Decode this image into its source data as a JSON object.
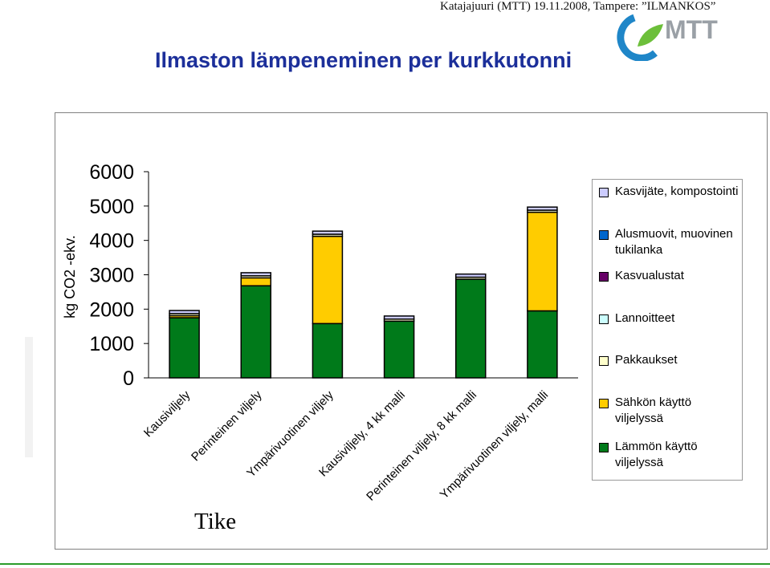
{
  "header": {
    "note": "Katajajuuri (MTT) 19.11.2008, Tampere: ”ILMANKOS”",
    "logo_text": "MTT",
    "title": "Ilmaston lämpeneminen per kurkkutonni"
  },
  "source_label": "Tike",
  "colors": {
    "title": "#1c2f9a",
    "logo_blue": "#1f86c8",
    "logo_green": "#6cbf3a",
    "bottom_rule": "#2a9d2a"
  },
  "chart_data": {
    "type": "bar",
    "stacked": true,
    "ylabel": "kg CO2 -ekv.",
    "ylim": [
      0,
      6000
    ],
    "yticks": [
      0,
      1000,
      2000,
      3000,
      4000,
      5000,
      6000
    ],
    "categories": [
      "Kausiviljely",
      "Perinteinen viljely",
      "Ympärivuotinen viljely",
      "Kausiviljely, 4 kk malli",
      "Perinteinen viljely, 8 kk malli",
      "Ympärivuotinen viljely, malli"
    ],
    "legend_position": "right",
    "series": [
      {
        "name": "Lämmön käyttö viljelyssä",
        "color": "#007a1a",
        "values": [
          1750,
          2680,
          1580,
          1650,
          2870,
          1950
        ]
      },
      {
        "name": "Sähkön käyttö viljelyssä",
        "color": "#ffcc00",
        "values": [
          60,
          230,
          2540,
          0,
          0,
          2870
        ]
      },
      {
        "name": "Pakkaukset",
        "color": "#ffffcc",
        "values": [
          60,
          60,
          60,
          60,
          60,
          60
        ]
      },
      {
        "name": "Lannoitteet",
        "color": "#ccffff",
        "values": [
          0,
          0,
          0,
          0,
          0,
          0
        ]
      },
      {
        "name": "Kasvualustat",
        "color": "#660066",
        "values": [
          0,
          0,
          0,
          0,
          0,
          0
        ]
      },
      {
        "name": "Alusmuovit, muovinen tukilanka",
        "color": "#0066cc",
        "values": [
          0,
          0,
          0,
          0,
          0,
          0
        ]
      },
      {
        "name": "Kasvijäte, kompostointi",
        "color": "#ccccff",
        "values": [
          90,
          90,
          90,
          90,
          90,
          90
        ]
      }
    ],
    "legend_order": [
      6,
      5,
      4,
      3,
      2,
      1,
      0
    ]
  }
}
